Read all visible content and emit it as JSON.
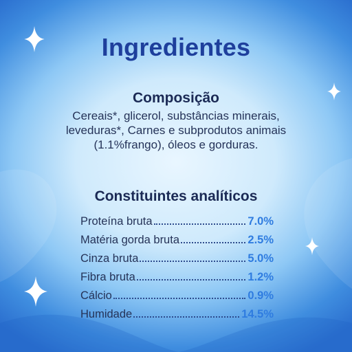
{
  "title": "Ingredientes",
  "composition": {
    "heading": "Composição",
    "lines": [
      "Cereais*, glicerol, substâncias minerais,",
      "leveduras*, Carnes e subprodutos animais",
      "(1.1%frango), óleos e gorduras."
    ]
  },
  "analytical": {
    "heading": "Constituintes analíticos",
    "rows": [
      {
        "label": "Proteína bruta",
        "value": "7.0%"
      },
      {
        "label": "Matéria gorda bruta",
        "value": "2.5%"
      },
      {
        "label": "Cinza bruta",
        "value": "5.0%"
      },
      {
        "label": "Fibra bruta",
        "value": "1.2%"
      },
      {
        "label": "Cálcio",
        "value": "0.9%"
      },
      {
        "label": "Humidade",
        "value": "14.5%"
      }
    ]
  },
  "icons": [
    "sparkle-icon"
  ],
  "colors": {
    "title": "#1e3f9c",
    "values": "#2f7ce0",
    "background_center": "#e9f6ff",
    "background_edge": "#2b6fcf"
  }
}
